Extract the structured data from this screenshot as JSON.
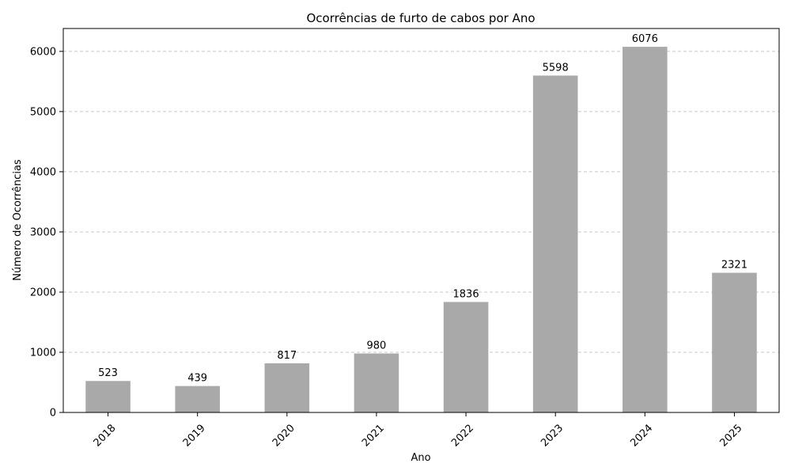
{
  "chart_data": {
    "type": "bar",
    "title": "Ocorrências de furto de cabos por Ano",
    "xlabel": "Ano",
    "ylabel": "Número de Ocorrências",
    "categories": [
      "2018",
      "2019",
      "2020",
      "2021",
      "2022",
      "2023",
      "2024",
      "2025"
    ],
    "values": [
      523,
      439,
      817,
      980,
      1836,
      5598,
      6076,
      2321
    ],
    "ylim": [
      0,
      6380
    ],
    "yticks": [
      0,
      1000,
      2000,
      3000,
      4000,
      5000,
      6000
    ],
    "grid": "y-dashed",
    "bar_color": "#a9a9a9",
    "grid_color": "#c8c8c8"
  }
}
